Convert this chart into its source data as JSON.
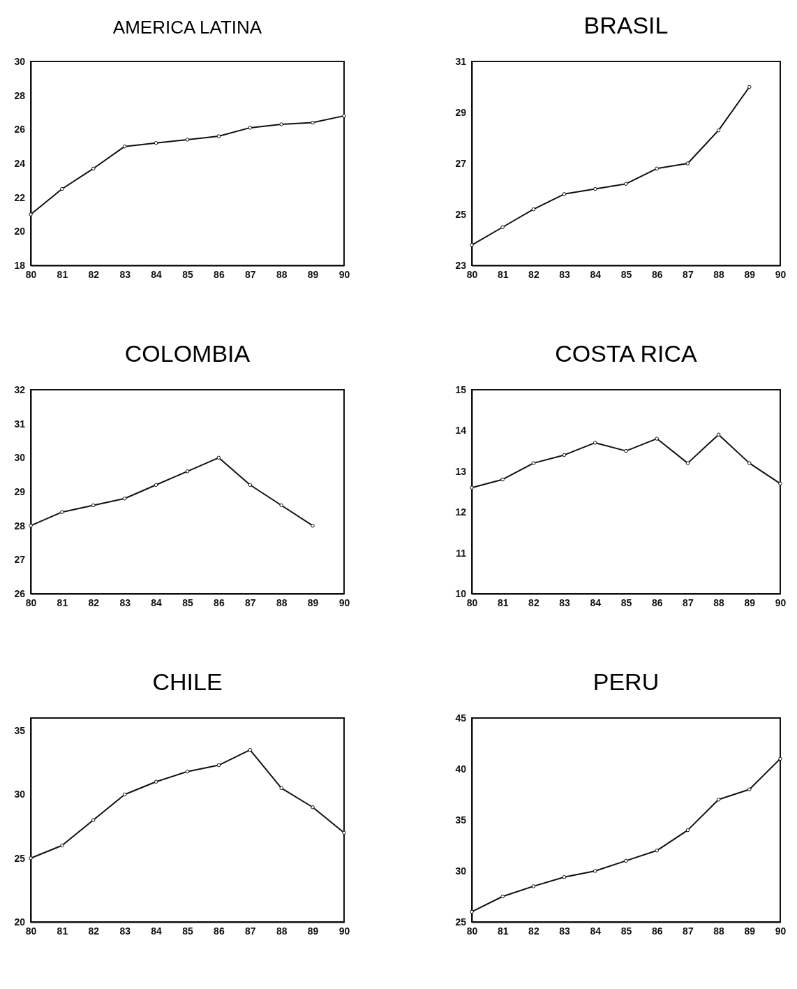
{
  "chart_data": [
    {
      "type": "line",
      "title": "AMERICA LATINA",
      "x": [
        80,
        81,
        82,
        83,
        84,
        85,
        86,
        87,
        88,
        89,
        90
      ],
      "values": [
        21.0,
        22.5,
        23.7,
        25.0,
        25.2,
        25.4,
        25.6,
        26.1,
        26.3,
        26.4,
        26.8
      ],
      "color": "#111111",
      "xlim": [
        80,
        90
      ],
      "xticks": [
        80,
        81,
        82,
        83,
        84,
        85,
        86,
        87,
        88,
        89,
        90
      ],
      "ylim": [
        18,
        30
      ],
      "yticks": [
        18,
        20,
        22,
        24,
        26,
        28,
        30
      ],
      "marker": "circle"
    },
    {
      "type": "line",
      "title": "BRASIL",
      "x": [
        80,
        81,
        82,
        83,
        84,
        85,
        86,
        87,
        88,
        89
      ],
      "values": [
        23.8,
        24.5,
        25.2,
        25.8,
        26.0,
        26.2,
        26.8,
        27.0,
        28.3,
        30.0
      ],
      "color": "#111111",
      "xlim": [
        80,
        90
      ],
      "xticks": [
        80,
        81,
        82,
        83,
        84,
        85,
        86,
        87,
        88,
        89,
        90
      ],
      "ylim": [
        23,
        31
      ],
      "yticks": [
        23,
        25,
        27,
        29,
        31
      ],
      "marker": "circle"
    },
    {
      "type": "line",
      "title": "COLOMBIA",
      "x": [
        80,
        81,
        82,
        83,
        84,
        85,
        86,
        87,
        88,
        89
      ],
      "values": [
        28.0,
        28.4,
        28.6,
        28.8,
        29.2,
        29.6,
        30.0,
        29.2,
        28.6,
        28.0
      ],
      "color": "#111111",
      "xlim": [
        80,
        90
      ],
      "xticks": [
        80,
        81,
        82,
        83,
        84,
        85,
        86,
        87,
        88,
        89,
        90
      ],
      "ylim": [
        26,
        32
      ],
      "yticks": [
        26,
        27,
        28,
        29,
        30,
        31,
        32
      ],
      "marker": "circle"
    },
    {
      "type": "line",
      "title": "COSTA RICA",
      "x": [
        80,
        81,
        82,
        83,
        84,
        85,
        86,
        87,
        88,
        89,
        90
      ],
      "values": [
        12.6,
        12.8,
        13.2,
        13.4,
        13.7,
        13.5,
        13.8,
        13.2,
        13.9,
        13.2,
        12.7
      ],
      "color": "#111111",
      "xlim": [
        80,
        90
      ],
      "xticks": [
        80,
        81,
        82,
        83,
        84,
        85,
        86,
        87,
        88,
        89,
        90
      ],
      "ylim": [
        10,
        15
      ],
      "yticks": [
        10,
        11,
        12,
        13,
        14,
        15
      ],
      "marker": "circle"
    },
    {
      "type": "line",
      "title": "CHILE",
      "x": [
        80,
        81,
        82,
        83,
        84,
        85,
        86,
        87,
        88,
        89,
        90
      ],
      "values": [
        25.0,
        26.0,
        28.0,
        30.0,
        31.0,
        31.8,
        32.3,
        33.5,
        30.5,
        29.0,
        27.0
      ],
      "color": "#111111",
      "xlim": [
        80,
        90
      ],
      "xticks": [
        80,
        81,
        82,
        83,
        84,
        85,
        86,
        87,
        88,
        89,
        90
      ],
      "ylim": [
        20,
        36
      ],
      "yticks": [
        20,
        25,
        30,
        35
      ],
      "marker": "circle"
    },
    {
      "type": "line",
      "title": "PERU",
      "x": [
        80,
        81,
        82,
        83,
        84,
        85,
        86,
        87,
        88,
        89,
        90
      ],
      "values": [
        26.0,
        27.5,
        28.5,
        29.4,
        30.0,
        31.0,
        32.0,
        34.0,
        37.0,
        38.0,
        41.0
      ],
      "color": "#111111",
      "xlim": [
        80,
        90
      ],
      "xticks": [
        80,
        81,
        82,
        83,
        84,
        85,
        86,
        87,
        88,
        89,
        90
      ],
      "ylim": [
        25,
        45
      ],
      "yticks": [
        25,
        30,
        35,
        40,
        45
      ],
      "marker": "circle"
    }
  ]
}
